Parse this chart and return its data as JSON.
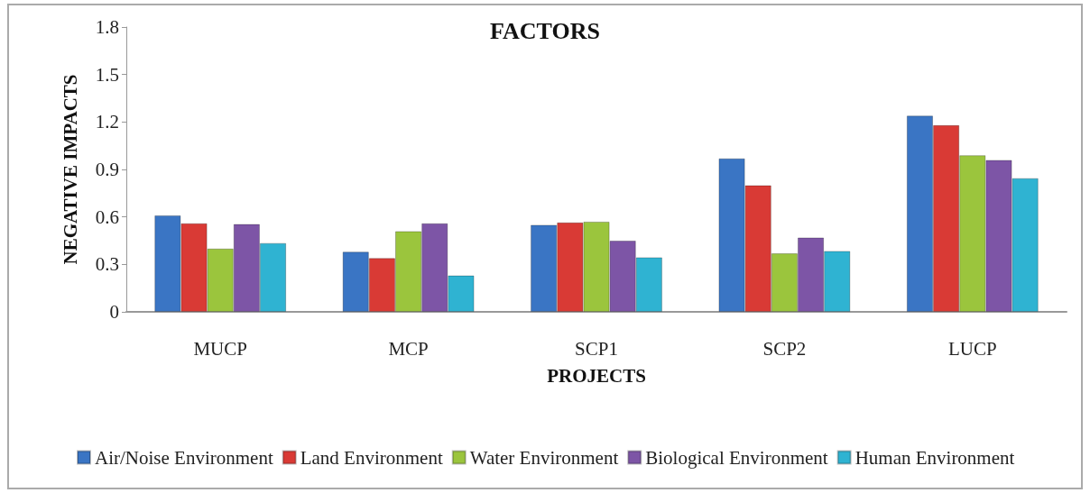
{
  "chart_data": {
    "type": "bar",
    "title": "FACTORS",
    "xlabel": "PROJECTS",
    "ylabel": "NEGATIVE IMPACTS",
    "categories": [
      "MUCP",
      "MCP",
      "SCP1",
      "SCP2",
      "LUCP"
    ],
    "series": [
      {
        "name": "Air/Noise Environment",
        "color": "#3a75c4",
        "values": [
          0.61,
          0.38,
          0.55,
          0.97,
          1.24
        ]
      },
      {
        "name": "Land Environment",
        "color": "#d93a35",
        "values": [
          0.56,
          0.34,
          0.565,
          0.8,
          1.18
        ]
      },
      {
        "name": "Water Environment",
        "color": "#9bc53d",
        "values": [
          0.4,
          0.51,
          0.57,
          0.37,
          0.99
        ]
      },
      {
        "name": "Biological Environment",
        "color": "#7d55a6",
        "values": [
          0.555,
          0.56,
          0.45,
          0.47,
          0.96
        ]
      },
      {
        "name": "Human Environment",
        "color": "#2fb3d2",
        "values": [
          0.435,
          0.23,
          0.345,
          0.385,
          0.845
        ]
      }
    ],
    "ylim": [
      0,
      1.8
    ],
    "yticks": [
      {
        "value": 0,
        "label": "0"
      },
      0.3,
      0.6,
      0.9,
      1.2,
      1.5,
      1.8
    ],
    "grid": false,
    "legend": "bottom left"
  }
}
